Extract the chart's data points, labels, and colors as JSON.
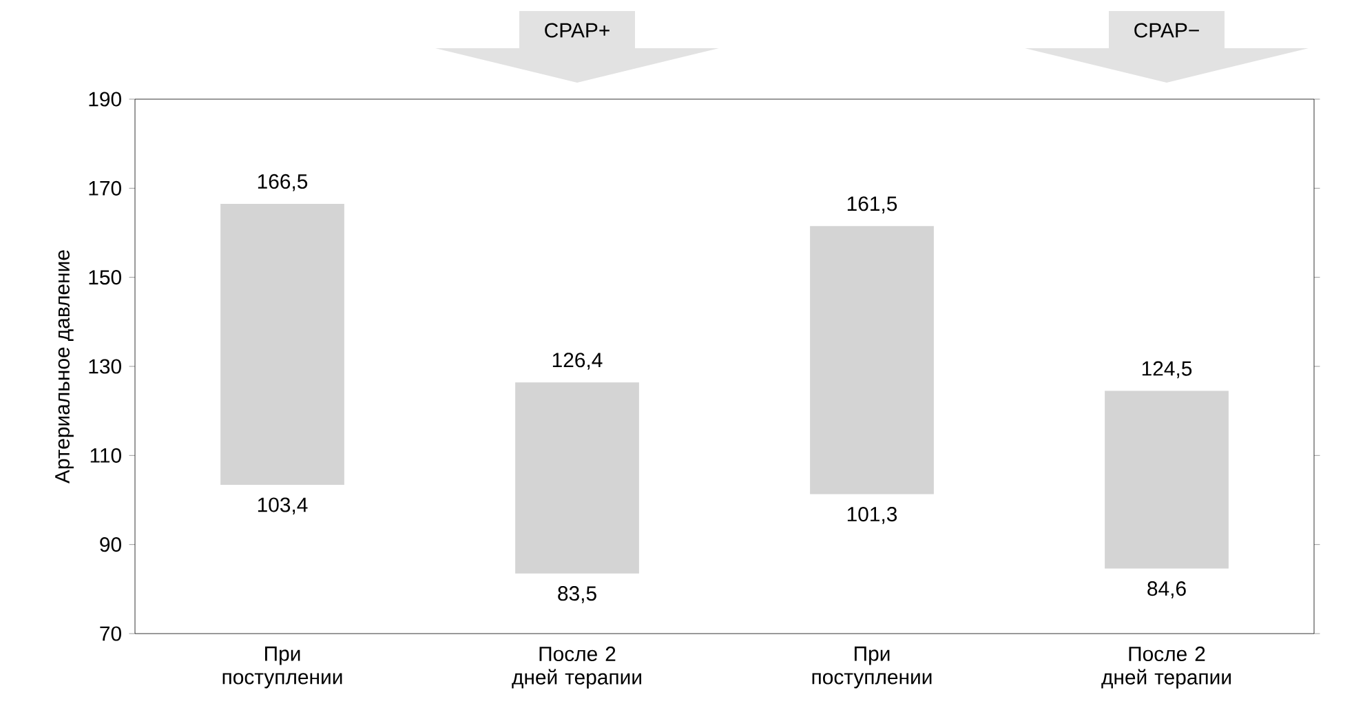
{
  "chart_data": {
    "type": "bar",
    "ylabel": "Артериальное давление",
    "categories": [
      "При поступлении",
      "После 2 дней терапии",
      "При поступлении",
      "После 2 дней терапии"
    ],
    "base": [
      103.4,
      83.5,
      101.3,
      84.6
    ],
    "values": [
      63.1,
      42.9,
      60.2,
      39.9
    ],
    "color": "#d4d4d4",
    "ylim": [
      70,
      190
    ],
    "yticks": [
      70,
      90,
      110,
      130,
      150,
      170,
      190
    ],
    "annotations": [
      "166,5",
      "103,4",
      "126,4",
      "83,5",
      "161,5",
      "101,3",
      "124,5",
      "84,6",
      "CPAP+",
      "CPAP−"
    ],
    "grid": false
  }
}
